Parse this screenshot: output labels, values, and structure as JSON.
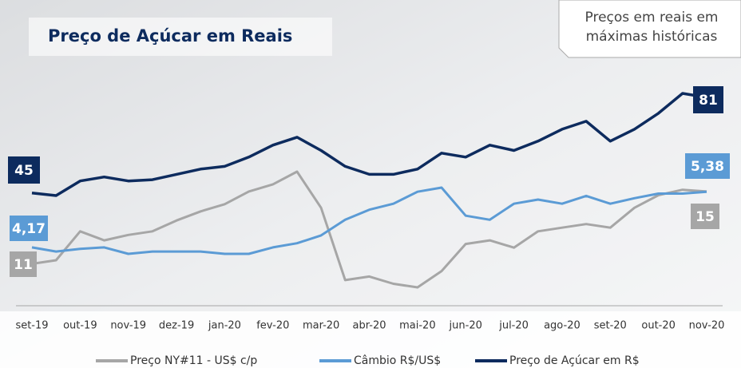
{
  "chart_data": {
    "type": "line",
    "title": "Preço de Açúcar em Reais",
    "annotation": "Preços em reais em máximas históricas",
    "categories": [
      "set-19",
      null,
      "out-19",
      null,
      "nov-19",
      null,
      "dez-19",
      null,
      "jan-20",
      null,
      "fev-20",
      null,
      "mar-20",
      null,
      "abr-20",
      null,
      "mai-20",
      null,
      "jun-20",
      null,
      "jul-20",
      null,
      "ago-20",
      null,
      "set-20",
      null,
      "out-20",
      null,
      "nov-20"
    ],
    "series": [
      {
        "name": "Preço NY#11 - US$ c/p",
        "color": "#a6a6a6",
        "values": [
          11,
          11.2,
          12.8,
          12.3,
          12.6,
          12.8,
          13.4,
          13.9,
          14.3,
          15,
          15.4,
          16.1,
          14.1,
          10.1,
          10.3,
          9.9,
          9.7,
          10.6,
          12.1,
          12.3,
          11.9,
          12.8,
          13,
          13.2,
          13,
          14.1,
          14.8,
          15.1,
          15
        ]
      },
      {
        "name": "Câmbio R$/US$",
        "color": "#5b9bd5",
        "values": [
          4.17,
          4.08,
          4.14,
          4.17,
          4.03,
          4.08,
          4.08,
          4.08,
          4.03,
          4.03,
          4.17,
          4.26,
          4.43,
          4.77,
          4.99,
          5.12,
          5.38,
          5.47,
          4.86,
          4.77,
          5.12,
          5.21,
          5.12,
          5.29,
          5.12,
          5.24,
          5.34,
          5.34,
          5.38
        ],
        "value_labels": [
          "4,17",
          null,
          null,
          null,
          null,
          null,
          null,
          null,
          null,
          null,
          null,
          null,
          null,
          null,
          null,
          null,
          null,
          null,
          null,
          null,
          null,
          null,
          null,
          null,
          null,
          null,
          null,
          null,
          "5,38"
        ]
      },
      {
        "name": "Preço de Açúcar em R$",
        "color": "#0d2b5e",
        "values": [
          45,
          44,
          49.5,
          51,
          49.5,
          50,
          52,
          54,
          55,
          58.5,
          63,
          66,
          61,
          55,
          52,
          52,
          54,
          60,
          58.5,
          63,
          61,
          64.5,
          69,
          72,
          64.5,
          69,
          75,
          82.5,
          81
        ]
      }
    ]
  }
}
